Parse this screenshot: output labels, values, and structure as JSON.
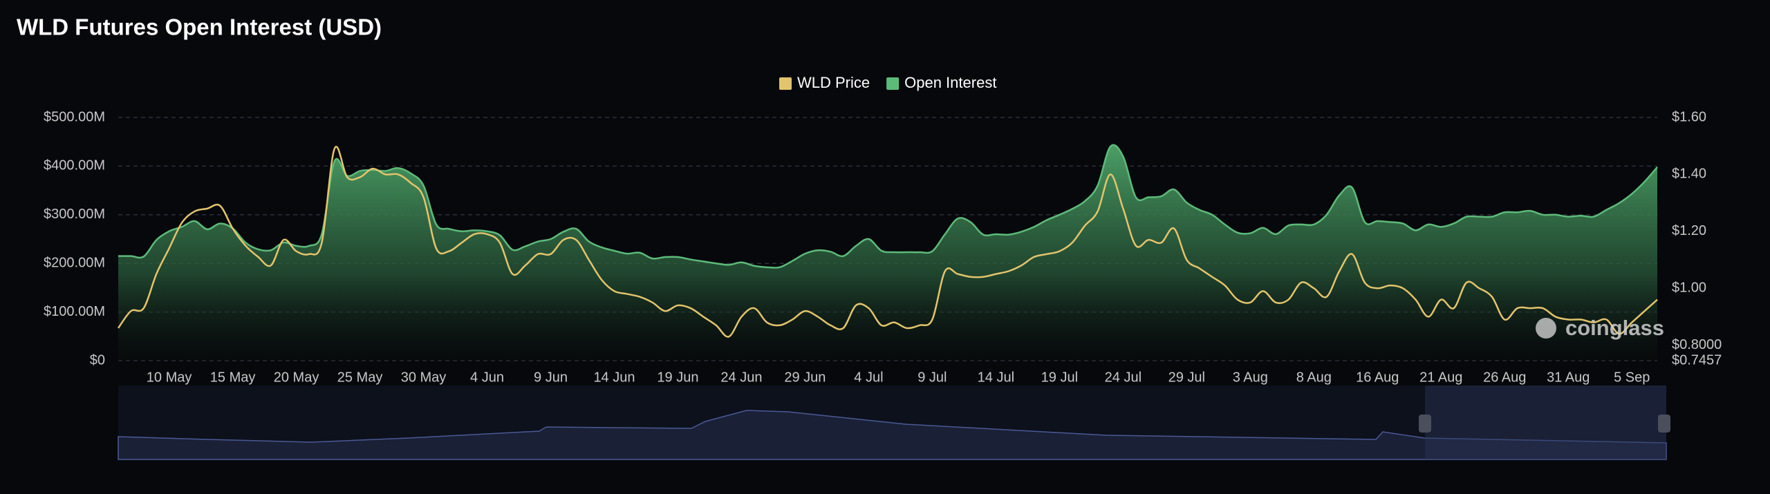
{
  "chart_data": {
    "type": "line",
    "title": "WLD Futures Open Interest (USD)",
    "watermark": "coinglass",
    "legend": "top",
    "grid": true,
    "categories": [
      null,
      null,
      null,
      null,
      "10 May",
      null,
      null,
      null,
      null,
      "15 May",
      null,
      null,
      null,
      null,
      "20 May",
      null,
      null,
      null,
      null,
      "25 May",
      null,
      null,
      null,
      null,
      "30 May",
      null,
      null,
      null,
      null,
      "4 Jun",
      null,
      null,
      null,
      null,
      "9 Jun",
      null,
      null,
      null,
      null,
      "14 Jun",
      null,
      null,
      null,
      null,
      "19 Jun",
      null,
      null,
      null,
      null,
      "24 Jun",
      null,
      null,
      null,
      null,
      "29 Jun",
      null,
      null,
      null,
      null,
      "4 Jul",
      null,
      null,
      null,
      null,
      "9 Jul",
      null,
      null,
      null,
      null,
      "14 Jul",
      null,
      null,
      null,
      null,
      "19 Jul",
      null,
      null,
      null,
      null,
      "24 Jul",
      null,
      null,
      null,
      null,
      "29 Jul",
      null,
      null,
      null,
      null,
      "3 Aug",
      null,
      null,
      null,
      null,
      "8 Aug",
      null,
      null,
      null,
      null,
      "16 Aug",
      null,
      null,
      null,
      null,
      "21 Aug",
      null,
      null,
      null,
      null,
      "26 Aug",
      null,
      null,
      null,
      null,
      "31 Aug",
      null,
      null,
      null,
      null,
      "5 Sep",
      null,
      null
    ],
    "series": [
      {
        "name": "WLD Price",
        "type": "line",
        "axis": "y2",
        "color": "#e3c46c",
        "values": [
          0.86,
          0.92,
          0.93,
          1.05,
          1.14,
          1.23,
          1.27,
          1.28,
          1.29,
          1.21,
          1.15,
          1.11,
          1.08,
          1.17,
          1.13,
          1.12,
          1.16,
          1.49,
          1.39,
          1.39,
          1.42,
          1.4,
          1.4,
          1.37,
          1.32,
          1.14,
          1.13,
          1.16,
          1.19,
          1.19,
          1.16,
          1.05,
          1.08,
          1.12,
          1.12,
          1.17,
          1.17,
          1.1,
          1.03,
          0.99,
          0.98,
          0.97,
          0.95,
          0.92,
          0.94,
          0.93,
          0.9,
          0.87,
          0.83,
          0.9,
          0.93,
          0.88,
          0.87,
          0.89,
          0.92,
          0.9,
          0.87,
          0.86,
          0.94,
          0.93,
          0.87,
          0.88,
          0.86,
          0.87,
          0.89,
          1.06,
          1.05,
          1.04,
          1.04,
          1.05,
          1.06,
          1.08,
          1.11,
          1.12,
          1.13,
          1.16,
          1.22,
          1.27,
          1.4,
          1.28,
          1.15,
          1.17,
          1.16,
          1.21,
          1.1,
          1.07,
          1.04,
          1.01,
          0.96,
          0.95,
          0.99,
          0.95,
          0.96,
          1.02,
          1.0,
          0.97,
          1.06,
          1.12,
          1.02,
          1.0,
          1.01,
          1.0,
          0.96,
          0.9,
          0.96,
          0.93,
          1.02,
          1.0,
          0.97,
          0.89,
          0.93,
          0.93,
          0.93,
          0.9,
          0.89,
          0.89,
          0.88,
          0.89,
          0.84,
          0.88,
          0.92,
          0.96
        ]
      },
      {
        "name": "Open Interest",
        "type": "area",
        "axis": "y",
        "color": "#5dbb7a",
        "values": [
          215000000.0,
          215000000.0,
          214000000.0,
          248000000.0,
          266000000.0,
          275000000.0,
          287000000.0,
          270000000.0,
          282000000.0,
          272000000.0,
          243000000.0,
          229000000.0,
          227000000.0,
          243000000.0,
          236000000.0,
          236000000.0,
          260000000.0,
          410000000.0,
          380000000.0,
          390000000.0,
          392000000.0,
          390000000.0,
          396000000.0,
          385000000.0,
          360000000.0,
          280000000.0,
          271000000.0,
          266000000.0,
          268000000.0,
          266000000.0,
          258000000.0,
          228000000.0,
          235000000.0,
          245000000.0,
          250000000.0,
          265000000.0,
          271000000.0,
          245000000.0,
          233000000.0,
          226000000.0,
          220000000.0,
          222000000.0,
          210000000.0,
          213000000.0,
          213000000.0,
          208000000.0,
          204000000.0,
          200000000.0,
          197000000.0,
          202000000.0,
          195000000.0,
          192000000.0,
          192000000.0,
          205000000.0,
          220000000.0,
          227000000.0,
          224000000.0,
          215000000.0,
          236000000.0,
          250000000.0,
          226000000.0,
          223000000.0,
          223000000.0,
          223000000.0,
          225000000.0,
          260000000.0,
          292000000.0,
          285000000.0,
          259000000.0,
          260000000.0,
          259000000.0,
          265000000.0,
          275000000.0,
          289000000.0,
          300000000.0,
          312000000.0,
          328000000.0,
          360000000.0,
          440000000.0,
          420000000.0,
          336000000.0,
          336000000.0,
          338000000.0,
          352000000.0,
          325000000.0,
          310000000.0,
          300000000.0,
          280000000.0,
          263000000.0,
          262000000.0,
          273000000.0,
          260000000.0,
          278000000.0,
          280000000.0,
          280000000.0,
          300000000.0,
          340000000.0,
          356000000.0,
          285000000.0,
          287000000.0,
          285000000.0,
          282000000.0,
          268000000.0,
          280000000.0,
          275000000.0,
          282000000.0,
          296000000.0,
          296000000.0,
          296000000.0,
          305000000.0,
          305000000.0,
          308000000.0,
          300000000.0,
          300000000.0,
          296000000.0,
          298000000.0,
          296000000.0,
          310000000.0,
          324000000.0,
          343000000.0,
          368000000.0,
          398000000.0
        ]
      }
    ],
    "ylim": [
      0,
      500000000.0
    ],
    "yticks": [
      {
        "value": 0,
        "label": "$0"
      },
      {
        "value": 100000000.0,
        "label": "$100.00M"
      },
      {
        "value": 200000000.0,
        "label": "$200.00M"
      },
      {
        "value": 300000000.0,
        "label": "$300.00M"
      },
      {
        "value": 400000000.0,
        "label": "$400.00M"
      },
      {
        "value": 500000000.0,
        "label": "$500.00M"
      }
    ],
    "y2lim": [
      0.7457,
      1.6
    ],
    "y2ticks": [
      {
        "value": 0.7457,
        "label": "$0.7457"
      },
      {
        "value": 0.8,
        "label": "$0.8000"
      },
      {
        "value": 1.0,
        "label": "$1.00"
      },
      {
        "value": 1.2,
        "label": "$1.20"
      },
      {
        "value": 1.4,
        "label": "$1.40"
      },
      {
        "value": 1.6,
        "label": "$1.60"
      }
    ]
  }
}
